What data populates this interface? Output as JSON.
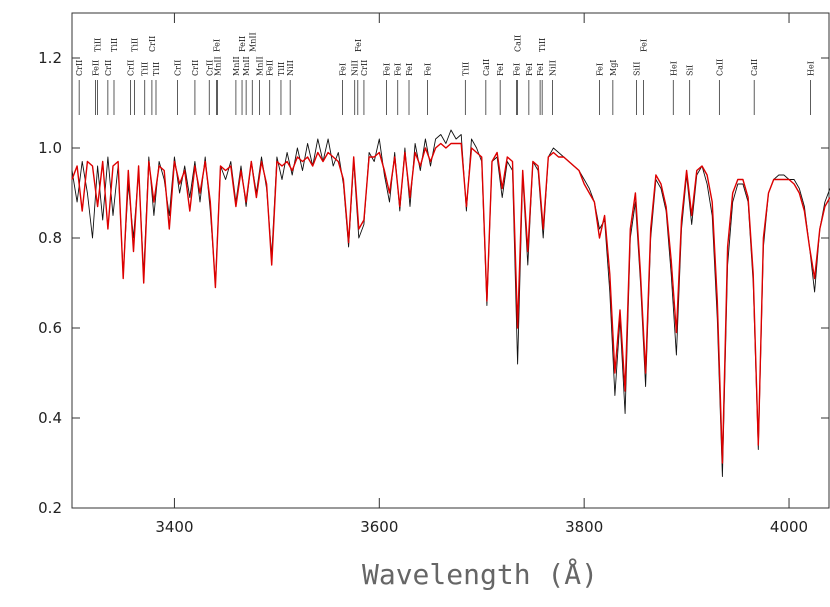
{
  "chart_data": {
    "type": "line",
    "x_label": "Wavelength (Å)",
    "xlim": [
      3300,
      4040
    ],
    "ylim": [
      0.2,
      1.3
    ],
    "xticks": [
      3400,
      3600,
      3800,
      4000
    ],
    "yticks": [
      0.2,
      0.4,
      0.6,
      0.8,
      {
        "value": 1,
        "label": "1.0"
      },
      1.2
    ],
    "x": [
      3300,
      3305,
      3310,
      3315,
      3320,
      3325,
      3330,
      3335,
      3340,
      3345,
      3350,
      3355,
      3360,
      3365,
      3370,
      3375,
      3380,
      3385,
      3390,
      3395,
      3400,
      3405,
      3410,
      3415,
      3420,
      3425,
      3430,
      3435,
      3440,
      3445,
      3450,
      3455,
      3460,
      3465,
      3470,
      3475,
      3480,
      3485,
      3490,
      3495,
      3500,
      3505,
      3510,
      3515,
      3520,
      3525,
      3530,
      3535,
      3540,
      3545,
      3550,
      3555,
      3560,
      3565,
      3570,
      3575,
      3580,
      3585,
      3590,
      3595,
      3600,
      3605,
      3610,
      3615,
      3620,
      3625,
      3630,
      3635,
      3640,
      3645,
      3650,
      3655,
      3660,
      3665,
      3670,
      3675,
      3680,
      3685,
      3690,
      3695,
      3700,
      3705,
      3710,
      3715,
      3720,
      3725,
      3730,
      3735,
      3740,
      3745,
      3750,
      3755,
      3760,
      3765,
      3770,
      3775,
      3780,
      3785,
      3790,
      3795,
      3800,
      3805,
      3810,
      3815,
      3820,
      3825,
      3830,
      3835,
      3840,
      3845,
      3850,
      3855,
      3860,
      3865,
      3870,
      3875,
      3880,
      3885,
      3890,
      3895,
      3900,
      3905,
      3910,
      3915,
      3920,
      3925,
      3930,
      3935,
      3940,
      3945,
      3950,
      3955,
      3960,
      3965,
      3970,
      3975,
      3980,
      3985,
      3990,
      3995,
      4000,
      4005,
      4010,
      4015,
      4020,
      4025,
      4030,
      4035,
      4040
    ],
    "series": [
      {
        "color": "#111111",
        "values": [
          0.95,
          0.88,
          0.97,
          0.9,
          0.8,
          0.96,
          0.84,
          0.98,
          0.85,
          0.96,
          0.72,
          0.92,
          0.8,
          0.95,
          0.72,
          0.98,
          0.85,
          0.97,
          0.93,
          0.85,
          0.98,
          0.9,
          0.96,
          0.89,
          0.97,
          0.88,
          0.98,
          0.86,
          0.7,
          0.96,
          0.93,
          0.97,
          0.88,
          0.96,
          0.87,
          0.97,
          0.9,
          0.98,
          0.91,
          0.76,
          0.98,
          0.93,
          0.99,
          0.94,
          1.0,
          0.95,
          1.01,
          0.96,
          1.02,
          0.97,
          1.02,
          0.96,
          0.99,
          0.92,
          0.78,
          0.97,
          0.8,
          0.83,
          0.99,
          0.97,
          1.02,
          0.94,
          0.88,
          0.99,
          0.86,
          1.0,
          0.87,
          1.01,
          0.95,
          1.02,
          0.96,
          1.02,
          1.03,
          1.01,
          1.04,
          1.02,
          1.03,
          0.86,
          1.02,
          1.0,
          0.97,
          0.65,
          0.97,
          0.98,
          0.89,
          0.97,
          0.95,
          0.52,
          0.94,
          0.74,
          0.97,
          0.95,
          0.8,
          0.98,
          1.0,
          0.99,
          0.98,
          0.97,
          0.96,
          0.95,
          0.93,
          0.91,
          0.88,
          0.82,
          0.84,
          0.68,
          0.45,
          0.62,
          0.41,
          0.8,
          0.88,
          0.7,
          0.47,
          0.8,
          0.93,
          0.91,
          0.86,
          0.72,
          0.54,
          0.82,
          0.94,
          0.83,
          0.94,
          0.96,
          0.92,
          0.85,
          0.62,
          0.27,
          0.74,
          0.88,
          0.92,
          0.92,
          0.88,
          0.7,
          0.33,
          0.78,
          0.9,
          0.93,
          0.94,
          0.94,
          0.93,
          0.93,
          0.91,
          0.87,
          0.78,
          0.68,
          0.82,
          0.88,
          0.91
        ]
      },
      {
        "color": "#dd0000",
        "values": [
          0.93,
          0.96,
          0.86,
          0.97,
          0.96,
          0.87,
          0.97,
          0.82,
          0.96,
          0.97,
          0.71,
          0.95,
          0.77,
          0.96,
          0.7,
          0.97,
          0.88,
          0.96,
          0.95,
          0.82,
          0.97,
          0.92,
          0.95,
          0.86,
          0.96,
          0.9,
          0.97,
          0.88,
          0.69,
          0.96,
          0.95,
          0.96,
          0.87,
          0.95,
          0.88,
          0.97,
          0.89,
          0.97,
          0.92,
          0.74,
          0.97,
          0.96,
          0.97,
          0.95,
          0.98,
          0.97,
          0.98,
          0.96,
          0.99,
          0.97,
          0.99,
          0.98,
          0.97,
          0.93,
          0.79,
          0.98,
          0.82,
          0.84,
          0.98,
          0.98,
          0.99,
          0.95,
          0.9,
          0.98,
          0.87,
          0.99,
          0.89,
          0.99,
          0.96,
          1.0,
          0.97,
          1.0,
          1.01,
          1.0,
          1.01,
          1.01,
          1.01,
          0.87,
          1.0,
          0.99,
          0.98,
          0.66,
          0.97,
          0.99,
          0.91,
          0.98,
          0.97,
          0.6,
          0.95,
          0.77,
          0.97,
          0.96,
          0.82,
          0.98,
          0.99,
          0.98,
          0.98,
          0.97,
          0.96,
          0.95,
          0.92,
          0.9,
          0.88,
          0.8,
          0.85,
          0.72,
          0.5,
          0.64,
          0.46,
          0.82,
          0.9,
          0.72,
          0.5,
          0.82,
          0.94,
          0.92,
          0.87,
          0.75,
          0.59,
          0.84,
          0.95,
          0.85,
          0.95,
          0.96,
          0.94,
          0.88,
          0.66,
          0.3,
          0.78,
          0.9,
          0.93,
          0.93,
          0.89,
          0.72,
          0.34,
          0.8,
          0.9,
          0.93,
          0.93,
          0.93,
          0.93,
          0.92,
          0.9,
          0.86,
          0.78,
          0.71,
          0.82,
          0.87,
          0.89
        ]
      }
    ],
    "annotations": [
      {
        "label": "CrII",
        "x": 3307
      },
      {
        "label": "FeII",
        "x": 3323
      },
      {
        "label": "TiII",
        "x": 3325
      },
      {
        "label": "CrII",
        "x": 3335
      },
      {
        "label": "TiII",
        "x": 3341
      },
      {
        "label": "CrII",
        "x": 3357
      },
      {
        "label": "TiII",
        "x": 3361
      },
      {
        "label": "TiII",
        "x": 3371
      },
      {
        "label": "CrII",
        "x": 3378
      },
      {
        "label": "TiII",
        "x": 3382
      },
      {
        "label": "CrII",
        "x": 3403
      },
      {
        "label": "CrII",
        "x": 3420
      },
      {
        "label": "CrII",
        "x": 3434
      },
      {
        "label": "FeI",
        "x": 3441
      },
      {
        "label": "MnII",
        "x": 3442
      },
      {
        "label": "MnII",
        "x": 3460
      },
      {
        "label": "FeII",
        "x": 3466
      },
      {
        "label": "MnII",
        "x": 3470
      },
      {
        "label": "MnII",
        "x": 3476
      },
      {
        "label": "MnII",
        "x": 3483
      },
      {
        "label": "FeII",
        "x": 3493
      },
      {
        "label": "TiII",
        "x": 3504
      },
      {
        "label": "NiII",
        "x": 3513
      },
      {
        "label": "FeI",
        "x": 3564
      },
      {
        "label": "NiII",
        "x": 3576
      },
      {
        "label": "FeI",
        "x": 3579
      },
      {
        "label": "CrII",
        "x": 3585
      },
      {
        "label": "FeI",
        "x": 3607
      },
      {
        "label": "FeI",
        "x": 3618
      },
      {
        "label": "FeI",
        "x": 3629
      },
      {
        "label": "FeI",
        "x": 3647
      },
      {
        "label": "TiII",
        "x": 3684
      },
      {
        "label": "CaII",
        "x": 3704
      },
      {
        "label": "FeI",
        "x": 3718
      },
      {
        "label": "FeI",
        "x": 3734
      },
      {
        "label": "CaII",
        "x": 3735
      },
      {
        "label": "FeI",
        "x": 3746
      },
      {
        "label": "FeI",
        "x": 3757
      },
      {
        "label": "TiII",
        "x": 3759
      },
      {
        "label": "NiII",
        "x": 3769
      },
      {
        "label": "FeI",
        "x": 3815
      },
      {
        "label": "MgI",
        "x": 3828
      },
      {
        "label": "SiII",
        "x": 3851
      },
      {
        "label": "FeI",
        "x": 3858
      },
      {
        "label": "HeI",
        "x": 3887
      },
      {
        "label": "SiI",
        "x": 3903
      },
      {
        "label": "CaII",
        "x": 3932
      },
      {
        "label": "CaII",
        "x": 3966
      },
      {
        "label": "HeI",
        "x": 4021
      }
    ]
  }
}
